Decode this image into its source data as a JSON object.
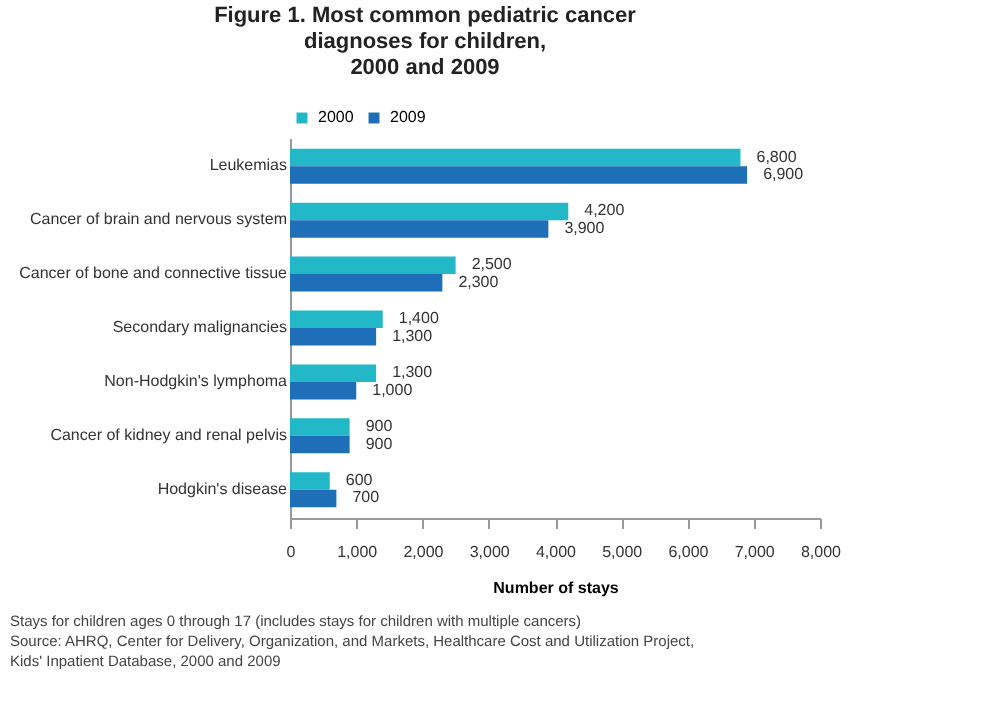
{
  "chart_data": {
    "type": "bar",
    "orientation": "horizontal",
    "title": [
      "Figure 1. Most common pediatric cancer",
      "diagnoses for children,",
      "2000 and 2009"
    ],
    "categories": [
      "Leukemias",
      "Cancer of brain and nervous system",
      "Cancer of bone and connective tissue",
      "Secondary malignancies",
      "Non-Hodgkin's lymphoma",
      "Cancer of kidney and renal pelvis",
      "Hodgkin's disease"
    ],
    "series": [
      {
        "name": "2000",
        "color": "#22b8c8",
        "values": [
          6800,
          4200,
          2500,
          1400,
          1300,
          900,
          600
        ]
      },
      {
        "name": "2009",
        "color": "#1f6fb8",
        "values": [
          6900,
          3900,
          2300,
          1300,
          1000,
          900,
          700
        ]
      }
    ],
    "xlabel": "Number of stays",
    "xlim": [
      0,
      8000
    ],
    "xticks": [
      0,
      {
        "value": 1000,
        "label": "1,000"
      },
      {
        "value": 2000,
        "label": "2,000"
      },
      {
        "value": 3000,
        "label": "3,000"
      },
      {
        "value": 4000,
        "label": "4,000"
      },
      {
        "value": 5000,
        "label": "5,000"
      },
      {
        "value": 6000,
        "label": "6,000"
      },
      {
        "value": 7000,
        "label": "7,000"
      },
      {
        "value": 8000,
        "label": "8,000"
      }
    ],
    "value_labels": [
      [
        "6,800",
        "4,200",
        "2,500",
        "1,400",
        "1,300",
        "900",
        "600"
      ],
      [
        "6,900",
        "3,900",
        "2,300",
        "1,300",
        "1,000",
        "900",
        "700"
      ]
    ],
    "grid": false,
    "legend": "top left",
    "annotations": [
      "Stays for children ages 0 through 17 (includes stays for children with multiple cancers)",
      "Source: AHRQ, Center for Delivery, Organization, and Markets, Healthcare Cost and Utilization Project,",
      "Kids' Inpatient Database, 2000 and 2009"
    ]
  }
}
